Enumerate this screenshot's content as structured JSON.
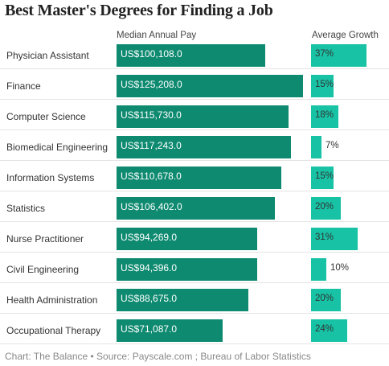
{
  "colors": {
    "pay_bar": "#0e8a70",
    "growth_bar": "#17c2a5",
    "separator": "#e4e4e4"
  },
  "chart_data": {
    "type": "bar",
    "orientation": "horizontal",
    "title": "Best Master's Degrees for Finding a Job",
    "categories": [
      "Physician Assistant",
      "Finance",
      "Computer Science",
      "Biomedical Engineering",
      "Information Systems",
      "Statistics",
      "Nurse Practitioner",
      "Civil Engineering",
      "Health Administration",
      "Occupational Therapy"
    ],
    "series": [
      {
        "name": "Median Annual Pay",
        "values": [
          100108,
          125208,
          115730,
          117243,
          110678,
          106402,
          94269,
          94396,
          88675,
          71087
        ],
        "labels": [
          "US$100,108.0",
          "US$125,208.0",
          "US$115,730.0",
          "US$117,243.0",
          "US$110,678.0",
          "US$106,402.0",
          "US$94,269.0",
          "US$94,396.0",
          "US$88,675.0",
          "US$71,087.0"
        ]
      },
      {
        "name": "Average Growth",
        "values": [
          37,
          15,
          18,
          7,
          15,
          20,
          31,
          10,
          20,
          24
        ],
        "labels": [
          "37%",
          "15%",
          "18%",
          "7%",
          "15%",
          "20%",
          "31%",
          "10%",
          "20%",
          "24%"
        ]
      }
    ],
    "source": "Chart: The Balance • Source: Payscale.com ; Bureau of Labor Statistics"
  }
}
